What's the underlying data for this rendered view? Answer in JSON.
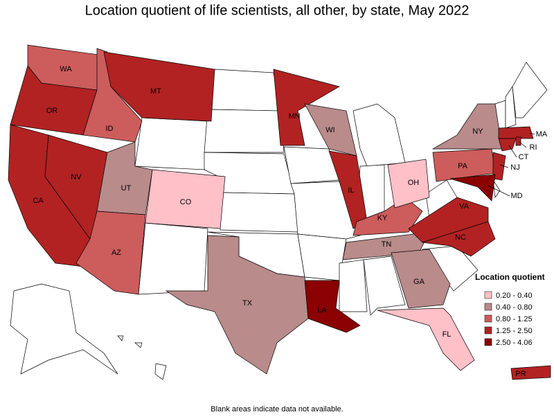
{
  "title": "Location quotient of life scientists, all other, by state, May 2022",
  "states": [
    {
      "label": "WA",
      "class": 2
    },
    {
      "label": "OR",
      "class": 3
    },
    {
      "label": "CA",
      "class": 3
    },
    {
      "label": "NV",
      "class": 3
    },
    {
      "label": "ID",
      "class": 2
    },
    {
      "label": "MT",
      "class": 3
    },
    {
      "label": "UT",
      "class": 1
    },
    {
      "label": "AZ",
      "class": 2
    },
    {
      "label": "CO",
      "class": 0
    },
    {
      "label": "MN",
      "class": 3
    },
    {
      "label": "WI",
      "class": 1
    },
    {
      "label": "IL",
      "class": 3
    },
    {
      "label": "KY",
      "class": 2
    },
    {
      "label": "TN",
      "class": 1
    },
    {
      "label": "TX",
      "class": 1
    },
    {
      "label": "LA",
      "class": 4
    },
    {
      "label": "GA",
      "class": 1
    },
    {
      "label": "FL",
      "class": 0
    },
    {
      "label": "OH",
      "class": 0
    },
    {
      "label": "PA",
      "class": 2
    },
    {
      "label": "NY",
      "class": 1
    },
    {
      "label": "NJ",
      "class": 3
    },
    {
      "label": "MD",
      "class": 4
    },
    {
      "label": "VA",
      "class": 3
    },
    {
      "label": "NC",
      "class": 3
    },
    {
      "label": "MA",
      "class": 3
    },
    {
      "label": "CT",
      "class": 3
    },
    {
      "label": "RI",
      "class": 3
    },
    {
      "label": "PR",
      "class": 3
    }
  ],
  "legend": {
    "title": "Location quotient",
    "items": [
      {
        "label": "0.20 - 0.40",
        "color": "#ffc0c8"
      },
      {
        "label": "0.40 - 0.80",
        "color": "#b98b8b"
      },
      {
        "label": "0.80 - 1.25",
        "color": "#cd5c5c"
      },
      {
        "label": "1.25 - 2.50",
        "color": "#b22222"
      },
      {
        "label": "2.50 - 4.06",
        "color": "#8b0000"
      }
    ]
  },
  "footnote": "Blank areas indicate data not available."
}
